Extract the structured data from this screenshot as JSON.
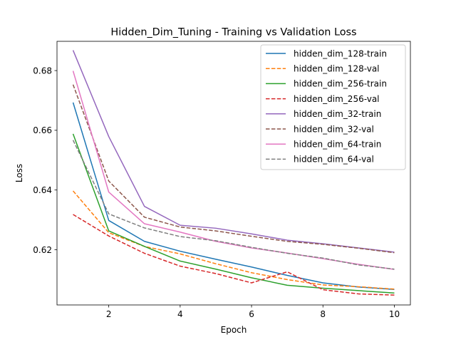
{
  "chart_data": {
    "type": "line",
    "title": "Hidden_Dim_Tuning - Training vs Validation Loss",
    "xlabel": "Epoch",
    "ylabel": "Loss",
    "xlim": [
      0.55,
      10.45
    ],
    "ylim": [
      0.6015,
      0.6898
    ],
    "xticks": [
      2,
      4,
      6,
      8,
      10
    ],
    "yticks": [
      0.62,
      0.64,
      0.66,
      0.68
    ],
    "ytick_labels": [
      "0.62",
      "0.64",
      "0.66",
      "0.68"
    ],
    "grid": false,
    "legend_position": "top-right",
    "x": [
      1,
      2,
      3,
      4,
      5,
      6,
      7,
      8,
      9,
      10
    ],
    "series": [
      {
        "name": "hidden_dim_128-train",
        "color": "#1f77b4",
        "dash": "solid",
        "values": [
          0.6693,
          0.6298,
          0.6228,
          0.6195,
          0.6168,
          0.6142,
          0.6114,
          0.6089,
          0.6075,
          0.6067
        ]
      },
      {
        "name": "hidden_dim_128-val",
        "color": "#ff7f0e",
        "dash": "dashed",
        "values": [
          0.6397,
          0.6257,
          0.6211,
          0.6186,
          0.6153,
          0.6123,
          0.61,
          0.6082,
          0.6076,
          0.6068
        ]
      },
      {
        "name": "hidden_dim_256-train",
        "color": "#2ca02c",
        "dash": "solid",
        "values": [
          0.6588,
          0.6263,
          0.6211,
          0.6162,
          0.6135,
          0.6106,
          0.6081,
          0.6071,
          0.6063,
          0.6055
        ]
      },
      {
        "name": "hidden_dim_256-val",
        "color": "#d62728",
        "dash": "dashed",
        "values": [
          0.6318,
          0.6246,
          0.6188,
          0.6145,
          0.612,
          0.6089,
          0.6126,
          0.6066,
          0.6052,
          0.6048
        ]
      },
      {
        "name": "hidden_dim_32-train",
        "color": "#9467bd",
        "dash": "solid",
        "values": [
          0.6868,
          0.6579,
          0.6345,
          0.6282,
          0.6272,
          0.6253,
          0.6232,
          0.622,
          0.6206,
          0.6192
        ]
      },
      {
        "name": "hidden_dim_32-val",
        "color": "#8c564b",
        "dash": "dashed",
        "values": [
          0.6753,
          0.643,
          0.6309,
          0.6276,
          0.6263,
          0.6245,
          0.6228,
          0.6218,
          0.6205,
          0.619
        ]
      },
      {
        "name": "hidden_dim_64-train",
        "color": "#e377c2",
        "dash": "solid",
        "values": [
          0.6799,
          0.6393,
          0.6287,
          0.6259,
          0.6228,
          0.6206,
          0.6189,
          0.617,
          0.6151,
          0.6134
        ]
      },
      {
        "name": "hidden_dim_64-val",
        "color": "#7f7f7f",
        "dash": "dashed",
        "values": [
          0.6567,
          0.632,
          0.6273,
          0.6244,
          0.623,
          0.6208,
          0.6188,
          0.6172,
          0.6149,
          0.6135
        ]
      }
    ]
  }
}
